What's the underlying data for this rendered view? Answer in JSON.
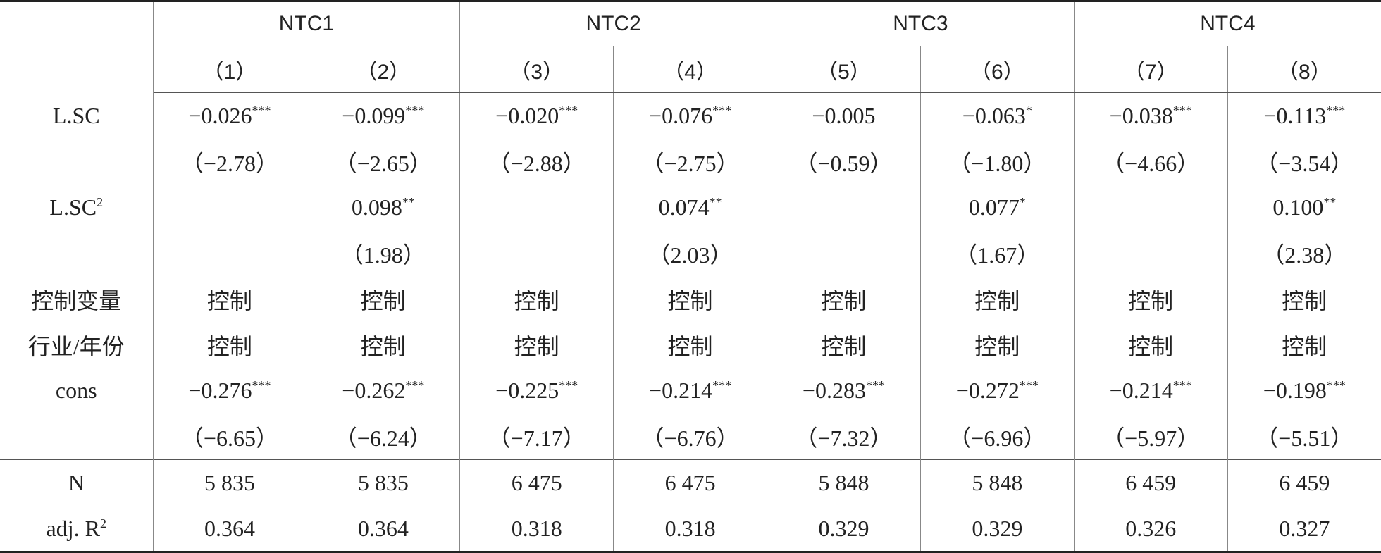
{
  "header": {
    "groups": [
      "NTC1",
      "NTC2",
      "NTC3",
      "NTC4"
    ],
    "columns": [
      "（1）",
      "（2）",
      "（3）",
      "（4）",
      "（5）",
      "（6）",
      "（7）",
      "（8）"
    ]
  },
  "body": [
    {
      "label": {
        "t": "L.SC"
      },
      "cells": [
        {
          "t": "−0.026",
          "s": "***"
        },
        {
          "t": "−0.099",
          "s": "***"
        },
        {
          "t": "−0.020",
          "s": "***"
        },
        {
          "t": "−0.076",
          "s": "***"
        },
        {
          "t": "−0.005"
        },
        {
          "t": "−0.063",
          "s": "*"
        },
        {
          "t": "−0.038",
          "s": "***"
        },
        {
          "t": "−0.113",
          "s": "***"
        }
      ]
    },
    {
      "label": null,
      "cells": [
        {
          "t": "（−2.78）"
        },
        {
          "t": "（−2.65）"
        },
        {
          "t": "（−2.88）"
        },
        {
          "t": "（−2.75）"
        },
        {
          "t": "（−0.59）"
        },
        {
          "t": "（−1.80）"
        },
        {
          "t": "（−4.66）"
        },
        {
          "t": "（−3.54）"
        }
      ]
    },
    {
      "label": {
        "t": "L.SC",
        "s": "2"
      },
      "cells": [
        null,
        {
          "t": "0.098",
          "s": "**"
        },
        null,
        {
          "t": "0.074",
          "s": "**"
        },
        null,
        {
          "t": "0.077",
          "s": "*"
        },
        null,
        {
          "t": "0.100",
          "s": "**"
        }
      ]
    },
    {
      "label": null,
      "cells": [
        null,
        {
          "t": "（1.98）"
        },
        null,
        {
          "t": "（2.03）"
        },
        null,
        {
          "t": "（1.67）"
        },
        null,
        {
          "t": "（2.38）"
        }
      ]
    },
    {
      "label": {
        "t": "控制变量"
      },
      "cells": [
        {
          "t": "控制"
        },
        {
          "t": "控制"
        },
        {
          "t": "控制"
        },
        {
          "t": "控制"
        },
        {
          "t": "控制"
        },
        {
          "t": "控制"
        },
        {
          "t": "控制"
        },
        {
          "t": "控制"
        }
      ]
    },
    {
      "label": {
        "t": "行业/年份"
      },
      "cells": [
        {
          "t": "控制"
        },
        {
          "t": "控制"
        },
        {
          "t": "控制"
        },
        {
          "t": "控制"
        },
        {
          "t": "控制"
        },
        {
          "t": "控制"
        },
        {
          "t": "控制"
        },
        {
          "t": "控制"
        }
      ]
    },
    {
      "label": {
        "t": "cons"
      },
      "cells": [
        {
          "t": "−0.276",
          "s": "***"
        },
        {
          "t": "−0.262",
          "s": "***"
        },
        {
          "t": "−0.225",
          "s": "***"
        },
        {
          "t": "−0.214",
          "s": "***"
        },
        {
          "t": "−0.283",
          "s": "***"
        },
        {
          "t": "−0.272",
          "s": "***"
        },
        {
          "t": "−0.214",
          "s": "***"
        },
        {
          "t": "−0.198",
          "s": "***"
        }
      ]
    },
    {
      "label": null,
      "cells": [
        {
          "t": "（−6.65）"
        },
        {
          "t": "（−6.24）"
        },
        {
          "t": "（−7.17）"
        },
        {
          "t": "（−6.76）"
        },
        {
          "t": "（−7.32）"
        },
        {
          "t": "（−6.96）"
        },
        {
          "t": "（−5.97）"
        },
        {
          "t": "（−5.51）"
        }
      ]
    }
  ],
  "footer": [
    {
      "label": {
        "t": "N"
      },
      "cells": [
        {
          "t": "5 835"
        },
        {
          "t": "5 835"
        },
        {
          "t": "6 475"
        },
        {
          "t": "6 475"
        },
        {
          "t": "5 848"
        },
        {
          "t": "5 848"
        },
        {
          "t": "6 459"
        },
        {
          "t": "6 459"
        }
      ]
    },
    {
      "label": {
        "t": "adj. R",
        "s": "2"
      },
      "cells": [
        {
          "t": "0.364"
        },
        {
          "t": "0.364"
        },
        {
          "t": "0.318"
        },
        {
          "t": "0.318"
        },
        {
          "t": "0.329"
        },
        {
          "t": "0.329"
        },
        {
          "t": "0.326"
        },
        {
          "t": "0.327"
        }
      ]
    }
  ]
}
